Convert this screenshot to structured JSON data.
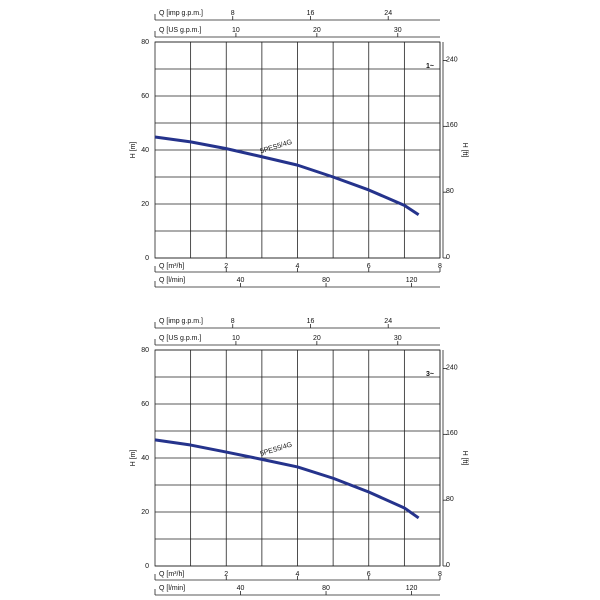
{
  "chart_data": [
    {
      "type": "line",
      "badge": "1~",
      "annotation": "5PES5/4G",
      "color": "#25338c",
      "xlabel": "Q [m³/h]",
      "xlim": [
        0,
        8
      ],
      "xticks": [
        2,
        4,
        6,
        8
      ],
      "xminorticks": [
        1,
        3,
        5,
        7
      ],
      "extra_x_axes": [
        {
          "label": "Q [imp g.p.m.]",
          "side": "top",
          "lim": [
            0,
            29.33
          ],
          "ticks": [
            8,
            16,
            24
          ]
        },
        {
          "label": "Q [US g.p.m.]",
          "side": "top",
          "lim": [
            0,
            35.22
          ],
          "ticks": [
            10,
            20,
            30
          ]
        },
        {
          "label": "Q [l/min]",
          "side": "bottom",
          "lim": [
            0,
            133.3
          ],
          "ticks": [
            40,
            80,
            120
          ]
        }
      ],
      "ylabel": "H [m]",
      "ylim": [
        0,
        80
      ],
      "yticks": [
        0,
        20,
        40,
        60,
        80
      ],
      "yminorticks": [
        10,
        30,
        50,
        70
      ],
      "y2label": "H [ft]",
      "y2lim": [
        0,
        262.5
      ],
      "y2ticks": [
        0,
        80,
        160,
        240
      ],
      "x": [
        0,
        1,
        2,
        3,
        4,
        5,
        6,
        7,
        7.4
      ],
      "values": [
        44.8,
        43,
        40.5,
        37.5,
        34.4,
        30,
        25.2,
        19.5,
        16
      ]
    },
    {
      "type": "line",
      "badge": "3~",
      "annotation": "5PES5/4G",
      "color": "#25338c",
      "xlabel": "Q [m³/h]",
      "xlim": [
        0,
        8
      ],
      "xticks": [
        2,
        4,
        6,
        8
      ],
      "xminorticks": [
        1,
        3,
        5,
        7
      ],
      "extra_x_axes": [
        {
          "label": "Q [imp g.p.m.]",
          "side": "top",
          "lim": [
            0,
            29.33
          ],
          "ticks": [
            8,
            16,
            24
          ]
        },
        {
          "label": "Q [US g.p.m.]",
          "side": "top",
          "lim": [
            0,
            35.22
          ],
          "ticks": [
            10,
            20,
            30
          ]
        },
        {
          "label": "Q [l/min]",
          "side": "bottom",
          "lim": [
            0,
            133.3
          ],
          "ticks": [
            40,
            80,
            120
          ]
        }
      ],
      "ylabel": "H [m]",
      "ylim": [
        0,
        80
      ],
      "yticks": [
        0,
        20,
        40,
        60,
        80
      ],
      "yminorticks": [
        10,
        30,
        50,
        70
      ],
      "y2label": "H [ft]",
      "y2lim": [
        0,
        262.5
      ],
      "y2ticks": [
        0,
        80,
        160,
        240
      ],
      "x": [
        0,
        1,
        2,
        3,
        4,
        5,
        6,
        7,
        7.4
      ],
      "values": [
        46.7,
        44.8,
        42.2,
        39.5,
        36.7,
        32.5,
        27.4,
        21.5,
        17.8
      ]
    }
  ]
}
